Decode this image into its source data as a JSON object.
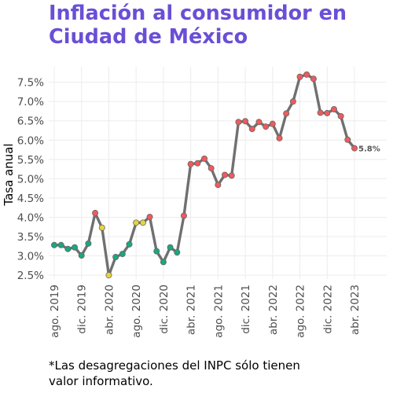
{
  "title_lines": [
    "Inflación al consumidor en",
    "Ciudad de México"
  ],
  "footnote_lines": [
    "*Las desagregaciones del INPC sólo tienen",
    "valor informativo."
  ],
  "colors": {
    "title": "#6a4fd6",
    "line": "#707070",
    "green": "#1aa77f",
    "yellow": "#e8d33f",
    "red": "#ee5a5e",
    "grid": "#ececec"
  },
  "chart_data": {
    "type": "line",
    "ylabel": "Tasa anual",
    "ylim": [
      2.4,
      7.9
    ],
    "yticks": [
      2.5,
      3.0,
      3.5,
      4.0,
      4.5,
      5.0,
      5.5,
      6.0,
      6.5,
      7.0,
      7.5
    ],
    "ytick_labels": [
      "2.5%",
      "3.0%",
      "3.5%",
      "4.0%",
      "4.5%",
      "5.0%",
      "5.5%",
      "6.0%",
      "6.5%",
      "7.0%",
      "7.5%"
    ],
    "xtick_labels": [
      "ago. 2019",
      "dic. 2019",
      "abr. 2020",
      "ago. 2020",
      "dic. 2020",
      "abr. 2021",
      "ago. 2021",
      "dic. 2021",
      "abr. 2022",
      "ago. 2022",
      "dic. 2022",
      "abr. 2023"
    ],
    "xtick_months": [
      "2019-08",
      "2019-12",
      "2020-04",
      "2020-08",
      "2020-12",
      "2021-04",
      "2021-08",
      "2021-12",
      "2022-04",
      "2022-08",
      "2022-12",
      "2023-04"
    ],
    "x": [
      "2019-08",
      "2019-09",
      "2019-10",
      "2019-11",
      "2019-12",
      "2020-01",
      "2020-02",
      "2020-03",
      "2020-04",
      "2020-05",
      "2020-06",
      "2020-07",
      "2020-08",
      "2020-09",
      "2020-10",
      "2020-11",
      "2020-12",
      "2021-01",
      "2021-02",
      "2021-03",
      "2021-04",
      "2021-05",
      "2021-06",
      "2021-07",
      "2021-08",
      "2021-09",
      "2021-10",
      "2021-11",
      "2021-12",
      "2022-01",
      "2022-02",
      "2022-03",
      "2022-04",
      "2022-05",
      "2022-06",
      "2022-07",
      "2022-08",
      "2022-09",
      "2022-10",
      "2022-11",
      "2022-12",
      "2023-01",
      "2023-02",
      "2023-03",
      "2023-04"
    ],
    "values": [
      3.28,
      3.28,
      3.18,
      3.22,
      3.01,
      3.32,
      4.11,
      3.73,
      2.5,
      2.97,
      3.05,
      3.3,
      3.86,
      3.86,
      4.01,
      3.12,
      2.84,
      3.22,
      3.09,
      4.04,
      5.38,
      5.4,
      5.52,
      5.27,
      4.84,
      5.1,
      5.08,
      6.47,
      6.49,
      6.29,
      6.47,
      6.35,
      6.42,
      6.05,
      6.69,
      7.0,
      7.64,
      7.7,
      7.59,
      6.71,
      6.7,
      6.8,
      6.62,
      6.01,
      5.79
    ],
    "point_colors": [
      "green",
      "green",
      "green",
      "green",
      "green",
      "green",
      "red",
      "yellow",
      "yellow",
      "green",
      "green",
      "green",
      "yellow",
      "yellow",
      "red",
      "green",
      "green",
      "green",
      "green",
      "red",
      "red",
      "red",
      "red",
      "red",
      "red",
      "red",
      "red",
      "red",
      "red",
      "red",
      "red",
      "red",
      "red",
      "red",
      "red",
      "red",
      "red",
      "red",
      "red",
      "red",
      "red",
      "red",
      "red",
      "red",
      "red"
    ],
    "last_label": "5.8%",
    "grid": true,
    "legend": "none"
  }
}
